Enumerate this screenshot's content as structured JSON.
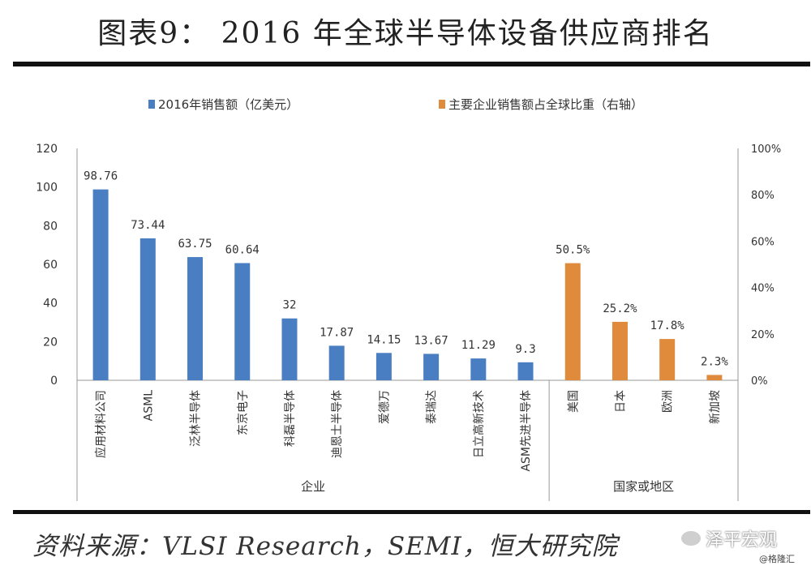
{
  "title": "图表9： 2016 年全球半导体设备供应商排名",
  "legend": [
    {
      "label": "2016年销售额（亿美元）",
      "color": "#4a7ec2"
    },
    {
      "label": "主要企业销售额占全球比重（右轴）",
      "color": "#e08a3c"
    }
  ],
  "source": "资料来源：VLSI Research，SEMI，恒大研究院",
  "watermark": {
    "main": "泽平宏观",
    "sub": "@格隆汇"
  },
  "chart_data": {
    "type": "bar",
    "y_left": {
      "lim": [
        0,
        120
      ],
      "ticks": [
        "0",
        "20",
        "40",
        "60",
        "80",
        "100",
        "120"
      ]
    },
    "y_right": {
      "lim": [
        0,
        100
      ],
      "ticks": [
        "0%",
        "20%",
        "40%",
        "60%",
        "80%",
        "100%"
      ]
    },
    "grid": false,
    "legend_position": "top",
    "groups": [
      {
        "label": "企业",
        "series_name": "2016年销售额（亿美元）",
        "axis": "left",
        "color": "#4a7ec2",
        "categories": [
          "应用材料公司",
          "ASML",
          "泛林半导体",
          "东京电子",
          "科磊半导体",
          "迪恩士半导体",
          "爱德万",
          "泰瑞达",
          "日立高新技术",
          "ASM先进半导体"
        ],
        "values": [
          98.76,
          73.44,
          63.75,
          60.64,
          32,
          17.87,
          14.15,
          13.67,
          11.29,
          9.3
        ],
        "labels": [
          "98.76",
          "73.44",
          "63.75",
          "60.64",
          "32",
          "17.87",
          "14.15",
          "13.67",
          "11.29",
          "9.3"
        ]
      },
      {
        "label": "国家或地区",
        "series_name": "主要企业销售额占全球比重（右轴）",
        "axis": "right",
        "color": "#e08a3c",
        "categories": [
          "美国",
          "日本",
          "欧洲",
          "新加坡"
        ],
        "values": [
          50.5,
          25.2,
          17.8,
          2.3
        ],
        "labels": [
          "50.5%",
          "25.2%",
          "17.8%",
          "2.3%"
        ]
      }
    ]
  }
}
